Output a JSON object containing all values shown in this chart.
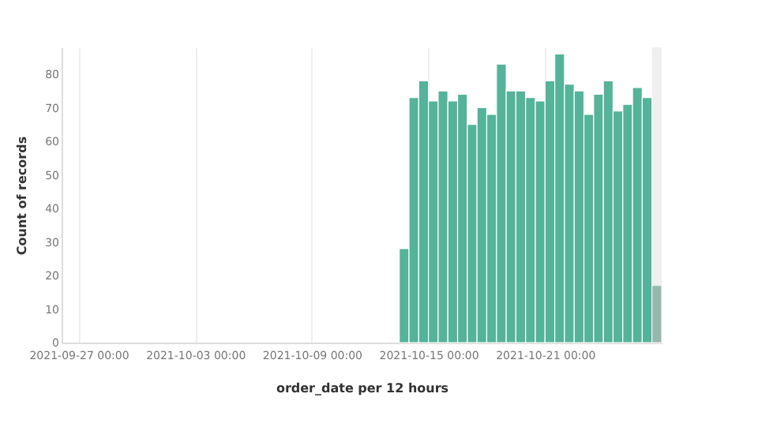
{
  "chart_data": {
    "type": "histogram",
    "xlabel": "order_date per 12 hours",
    "ylabel": "Count of records",
    "bins": [
      "2021-10-13T12:00",
      "2021-10-14T00:00",
      "2021-10-14T12:00",
      "2021-10-15T00:00",
      "2021-10-15T12:00",
      "2021-10-16T00:00",
      "2021-10-16T12:00",
      "2021-10-17T00:00",
      "2021-10-17T12:00",
      "2021-10-18T00:00",
      "2021-10-18T12:00",
      "2021-10-19T00:00",
      "2021-10-19T12:00",
      "2021-10-20T00:00",
      "2021-10-20T12:00",
      "2021-10-21T00:00",
      "2021-10-21T12:00",
      "2021-10-22T00:00",
      "2021-10-22T12:00",
      "2021-10-23T00:00",
      "2021-10-23T12:00",
      "2021-10-24T00:00",
      "2021-10-24T12:00",
      "2021-10-25T00:00",
      "2021-10-25T12:00",
      "2021-10-26T00:00",
      "2021-10-26T12:00",
      "2021-10-27T00:00"
    ],
    "values": [
      28,
      73,
      78,
      72,
      75,
      72,
      74,
      65,
      70,
      68,
      83,
      75,
      75,
      73,
      72,
      78,
      86,
      77,
      75,
      68,
      74,
      78,
      69,
      71,
      76,
      73,
      17
    ],
    "colors": [
      "#54b399",
      "#54b399",
      "#54b399",
      "#54b399",
      "#54b399",
      "#54b399",
      "#54b399",
      "#54b399",
      "#54b399",
      "#54b399",
      "#54b399",
      "#54b399",
      "#54b399",
      "#54b399",
      "#54b399",
      "#54b399",
      "#54b399",
      "#54b399",
      "#54b399",
      "#54b399",
      "#54b399",
      "#54b399",
      "#54b399",
      "#54b399",
      "#54b399",
      "#54b399",
      "#4a8f7c"
    ],
    "xlim": [
      "2021-09-26T03:00",
      "2021-10-27T00:00"
    ],
    "xticks": [
      {
        "value": "2021-09-27T00:00",
        "label": "2021-09-27 00:00"
      },
      {
        "value": "2021-10-03T00:00",
        "label": "2021-10-03 00:00"
      },
      {
        "value": "2021-10-09T00:00",
        "label": "2021-10-09 00:00"
      },
      {
        "value": "2021-10-15T00:00",
        "label": "2021-10-15 00:00"
      },
      {
        "value": "2021-10-21T00:00",
        "label": "2021-10-21 00:00"
      }
    ],
    "ylim": [
      0,
      88
    ],
    "yticks": [
      0,
      10,
      20,
      30,
      40,
      50,
      60,
      70,
      80
    ],
    "grid": "x",
    "legend": false,
    "bands": [
      {
        "axis": "x",
        "from": "2021-10-26T12:00",
        "to": "2021-10-27T00:00",
        "color": "#e0e0e0"
      }
    ]
  }
}
